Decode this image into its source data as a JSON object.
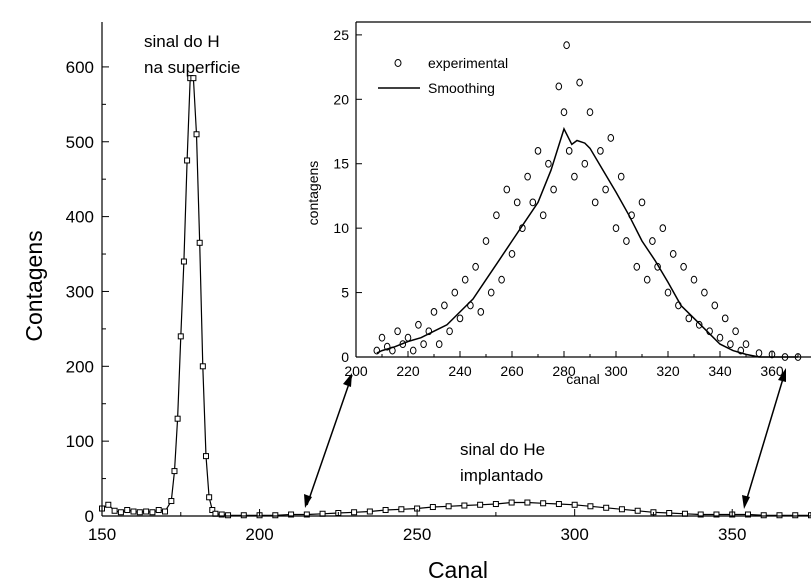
{
  "chart_data": [
    {
      "type": "scatter",
      "xlabel": "Canal",
      "ylabel": "Contagens",
      "xlim": [
        150,
        375
      ],
      "ylim": [
        0,
        660
      ],
      "xticks": [
        150,
        200,
        250,
        300,
        350
      ],
      "yticks": [
        0,
        100,
        200,
        300,
        400,
        500,
        600
      ],
      "annotations": [
        "sinal do H",
        "na superficie",
        "sinal do He",
        "implantado"
      ],
      "series": [
        {
          "marker": "square",
          "x": [
            150,
            152,
            154,
            156,
            158,
            160,
            162,
            164,
            166,
            168,
            170,
            172,
            173,
            174,
            175,
            176,
            177,
            178,
            179,
            180,
            181,
            182,
            183,
            184,
            185,
            186,
            188,
            190,
            195,
            200,
            205,
            210,
            215,
            220,
            225,
            230,
            235,
            240,
            245,
            250,
            255,
            260,
            265,
            270,
            275,
            280,
            285,
            290,
            295,
            300,
            305,
            310,
            315,
            320,
            325,
            330,
            335,
            340,
            345,
            350,
            355,
            360,
            365,
            370,
            375
          ],
          "y": [
            10,
            15,
            7,
            5,
            8,
            6,
            5,
            6,
            5,
            8,
            6,
            20,
            60,
            130,
            240,
            340,
            475,
            585,
            585,
            510,
            365,
            200,
            80,
            25,
            8,
            3,
            2,
            1,
            1,
            1,
            1,
            2,
            2,
            3,
            4,
            5,
            6,
            8,
            9,
            10,
            12,
            13,
            14,
            15,
            16,
            18,
            18,
            17,
            16,
            15,
            13,
            11,
            9,
            7,
            5,
            4,
            3,
            2,
            2,
            2,
            2,
            1,
            1,
            1,
            1
          ]
        }
      ]
    },
    {
      "type": "scatter",
      "xlabel": "canal",
      "ylabel": "contagens",
      "xlim": [
        200,
        375
      ],
      "ylim": [
        0,
        26
      ],
      "xticks": [
        200,
        220,
        240,
        260,
        280,
        300,
        320,
        340,
        360
      ],
      "yticks": [
        0,
        5,
        10,
        15,
        20,
        25
      ],
      "legend_position": "top-left",
      "series": [
        {
          "name": "experimental",
          "marker": "open-circle",
          "x": [
            208,
            210,
            212,
            214,
            216,
            218,
            220,
            222,
            224,
            226,
            228,
            230,
            232,
            234,
            236,
            238,
            240,
            242,
            244,
            246,
            248,
            250,
            252,
            254,
            256,
            258,
            260,
            262,
            264,
            266,
            268,
            270,
            272,
            274,
            276,
            278,
            280,
            281,
            282,
            284,
            286,
            288,
            290,
            292,
            294,
            296,
            298,
            300,
            302,
            304,
            306,
            308,
            310,
            312,
            314,
            316,
            318,
            320,
            322,
            324,
            326,
            328,
            330,
            332,
            334,
            336,
            338,
            340,
            342,
            344,
            346,
            348,
            350,
            355,
            360,
            365,
            370
          ],
          "y": [
            0.5,
            1.5,
            0.8,
            0.5,
            2,
            1,
            1.5,
            0.5,
            2.5,
            1,
            2,
            3.5,
            1,
            4,
            2,
            5,
            3,
            6,
            4,
            7,
            3.5,
            9,
            5,
            11,
            6,
            13,
            8,
            12,
            10,
            14,
            12,
            16,
            11,
            15,
            13,
            21,
            19,
            24.2,
            16,
            14,
            21.3,
            15,
            19,
            12,
            16,
            13,
            17,
            10,
            14,
            9,
            11,
            7,
            12,
            6,
            9,
            7,
            10,
            5,
            8,
            4,
            7,
            3,
            6,
            2.5,
            5,
            2,
            4,
            1.5,
            3,
            1,
            2,
            0.5,
            1,
            0.3,
            0.2,
            0,
            0
          ]
        },
        {
          "name": "Smoothing",
          "marker": "line",
          "x": [
            208,
            210,
            215,
            220,
            225,
            230,
            235,
            240,
            245,
            250,
            255,
            260,
            265,
            270,
            275,
            280,
            283,
            285,
            288,
            290,
            295,
            300,
            305,
            310,
            315,
            320,
            325,
            330,
            335,
            340,
            345,
            350,
            355,
            360,
            365,
            370
          ],
          "y": [
            0.3,
            0.5,
            0.8,
            1.2,
            1.5,
            2,
            2.5,
            3.5,
            4.5,
            6,
            7.5,
            9,
            10.5,
            12,
            14.5,
            17.7,
            16.5,
            16.8,
            16.6,
            16.2,
            14.5,
            12.8,
            11,
            9,
            7.5,
            5.8,
            4,
            3,
            2,
            1,
            0.5,
            0.2,
            0,
            0,
            0,
            0
          ]
        }
      ]
    }
  ]
}
